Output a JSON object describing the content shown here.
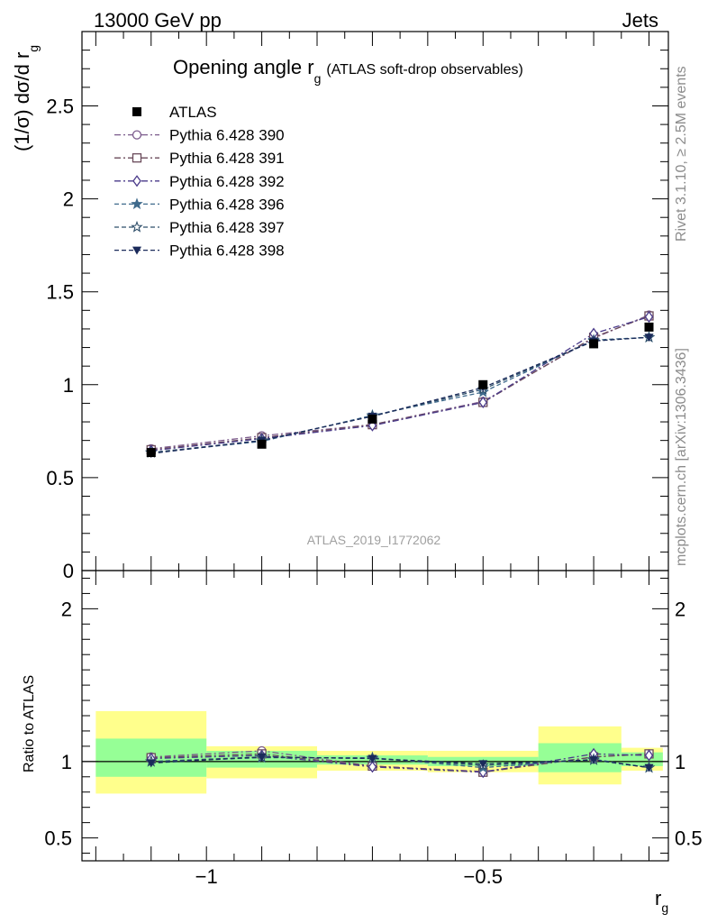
{
  "header": {
    "left": "13000 GeV pp",
    "right": "Jets"
  },
  "side_text": {
    "rivet": "Rivet 3.1.10, ≥ 2.5M events",
    "mcplots": "mcplots.cern.ch [arXiv:1306.3436]"
  },
  "watermark": "ATLAS_2019_I1772062",
  "chart_data": [
    {
      "type": "line",
      "panel": "main",
      "title": "Opening angle r",
      "title_sub": "g",
      "title_suffix": "(ATLAS soft-drop observables)",
      "ylabel": "(1/σ) dσ/d r",
      "ylabel_sub": "g",
      "xlabel": "r",
      "xlabel_sub": "g",
      "xlim": [
        -1.225,
        -0.165
      ],
      "ylim": [
        0,
        2.9
      ],
      "ytick_labels": [
        "0",
        "0.5",
        "1",
        "1.5",
        "2",
        "2.5"
      ],
      "xtick_labels": [
        "−1",
        "−0.5"
      ],
      "legend_position": "top-left",
      "grid": false,
      "x": [
        -1.1,
        -0.9,
        -0.7,
        -0.5,
        -0.3,
        -0.2
      ],
      "bin_edges": [
        -1.2,
        -1.0,
        -0.8,
        -0.6,
        -0.4,
        -0.25,
        -0.175
      ],
      "series": [
        {
          "name": "ATLAS",
          "marker": "square-filled",
          "color": "#000000",
          "dash": "none",
          "values": [
            0.635,
            0.68,
            0.815,
            1.0,
            1.22,
            1.31
          ]
        },
        {
          "name": "Pythia 6.428 390",
          "marker": "circle-open",
          "color": "#7b5a8c",
          "dash": "dashdot",
          "values": [
            0.655,
            0.725,
            0.785,
            0.91,
            1.25,
            1.375
          ]
        },
        {
          "name": "Pythia 6.428 391",
          "marker": "square-open",
          "color": "#6a4a5a",
          "dash": "dashdot",
          "values": [
            0.65,
            0.715,
            0.785,
            0.905,
            1.255,
            1.37
          ]
        },
        {
          "name": "Pythia 6.428 392",
          "marker": "diamond-open",
          "color": "#4a3a8a",
          "dash": "dashdot",
          "values": [
            0.645,
            0.71,
            0.78,
            0.905,
            1.275,
            1.365
          ]
        },
        {
          "name": "Pythia 6.428 396",
          "marker": "star-filled",
          "color": "#3f6a8c",
          "dash": "dashed",
          "values": [
            0.635,
            0.695,
            0.835,
            0.96,
            1.24,
            1.255
          ]
        },
        {
          "name": "Pythia 6.428 397",
          "marker": "star-open",
          "color": "#2f4f6a",
          "dash": "dashed",
          "values": [
            0.635,
            0.7,
            0.83,
            0.975,
            1.235,
            1.255
          ]
        },
        {
          "name": "Pythia 6.428 398",
          "marker": "triangle-down-filled",
          "color": "#1a2a5a",
          "dash": "dashed",
          "values": [
            0.63,
            0.7,
            0.83,
            0.985,
            1.235,
            1.255
          ]
        }
      ]
    },
    {
      "type": "line",
      "panel": "ratio",
      "ylabel": "Ratio to ATLAS",
      "ylim": [
        0.35,
        2.25
      ],
      "ytick_labels": [
        "0.5",
        "1",
        "2"
      ],
      "reference_line": 1.0,
      "uncertainty_bands": {
        "x_edges": [
          -1.2,
          -1.0,
          -0.8,
          -0.6,
          -0.4,
          -0.25,
          -0.175
        ],
        "outer_color": "#ffff8c",
        "inner_color": "#96ff96",
        "outer": [
          [
            0.79,
            1.33
          ],
          [
            0.89,
            1.1
          ],
          [
            0.94,
            1.07
          ],
          [
            0.93,
            1.07
          ],
          [
            0.85,
            1.23
          ],
          [
            0.94,
            1.09
          ]
        ],
        "inner": [
          [
            0.9,
            1.15
          ],
          [
            0.96,
            1.07
          ],
          [
            0.98,
            1.04
          ],
          [
            0.97,
            1.03
          ],
          [
            0.93,
            1.12
          ],
          [
            0.97,
            1.06
          ]
        ]
      },
      "x": [
        -1.1,
        -0.9,
        -0.7,
        -0.5,
        -0.3,
        -0.2
      ],
      "series": [
        {
          "name": "Pythia 6.428 390",
          "values": [
            1.03,
            1.07,
            0.97,
            0.935,
            1.03,
            1.05
          ]
        },
        {
          "name": "Pythia 6.428 391",
          "values": [
            1.025,
            1.05,
            0.97,
            0.93,
            1.03,
            1.05
          ]
        },
        {
          "name": "Pythia 6.428 392",
          "values": [
            1.02,
            1.04,
            0.965,
            0.93,
            1.05,
            1.04
          ]
        },
        {
          "name": "Pythia 6.428 396",
          "values": [
            1.0,
            1.025,
            1.025,
            0.96,
            1.015,
            0.96
          ]
        },
        {
          "name": "Pythia 6.428 397",
          "values": [
            1.0,
            1.03,
            1.02,
            0.975,
            1.01,
            0.96
          ]
        },
        {
          "name": "Pythia 6.428 398",
          "values": [
            0.99,
            1.03,
            1.02,
            0.985,
            1.01,
            0.96
          ]
        }
      ]
    }
  ]
}
